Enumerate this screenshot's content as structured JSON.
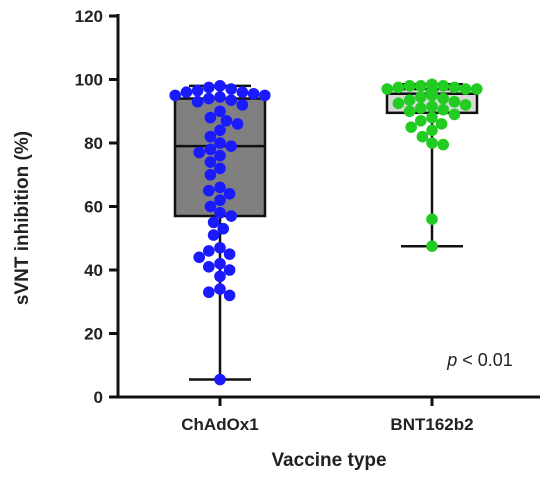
{
  "chart_data": {
    "type": "box-dot",
    "title": "",
    "xlabel": "Vaccine type",
    "ylabel": "sVNT inhibition  (%)",
    "ylim": [
      0,
      120
    ],
    "yticks": [
      0,
      20,
      40,
      60,
      80,
      100,
      120
    ],
    "grid": false,
    "legend": "none",
    "annotation": {
      "italic": "p",
      "text": " < 0.01"
    },
    "groups": [
      {
        "name": "ChAdOx1",
        "box_fill": "#808080",
        "dot_color": "#1a1aff",
        "min": 5.5,
        "q1": 57,
        "median": 79,
        "q3": 94,
        "max": 98,
        "points": [
          98,
          97.5,
          97,
          96.5,
          96,
          96,
          95.5,
          95,
          95,
          94.5,
          94,
          93.5,
          93,
          92,
          90,
          88,
          87,
          86,
          84,
          82,
          80,
          79,
          78,
          77,
          76,
          74,
          72,
          70,
          66,
          65,
          64,
          62,
          60,
          58,
          57,
          55,
          53,
          51,
          47,
          46,
          45,
          44,
          42,
          41,
          40,
          38,
          34,
          33,
          32,
          5.5
        ]
      },
      {
        "name": "BNT162b2",
        "box_fill": "#d9d9d9",
        "dot_color": "#22cc22",
        "min": 47.5,
        "q1": 89.5,
        "median": 95.5,
        "q3": 97,
        "max": 98.5,
        "points": [
          98.5,
          98,
          98,
          98,
          97.5,
          97.5,
          97,
          97,
          97,
          96.5,
          96.5,
          96,
          96,
          95.5,
          95.5,
          95,
          95,
          94.5,
          94,
          93.5,
          93,
          92.5,
          92,
          91.5,
          91,
          90.5,
          90,
          89,
          88,
          87,
          86,
          85,
          84,
          82,
          80,
          79.5,
          56,
          47.5
        ]
      }
    ]
  }
}
